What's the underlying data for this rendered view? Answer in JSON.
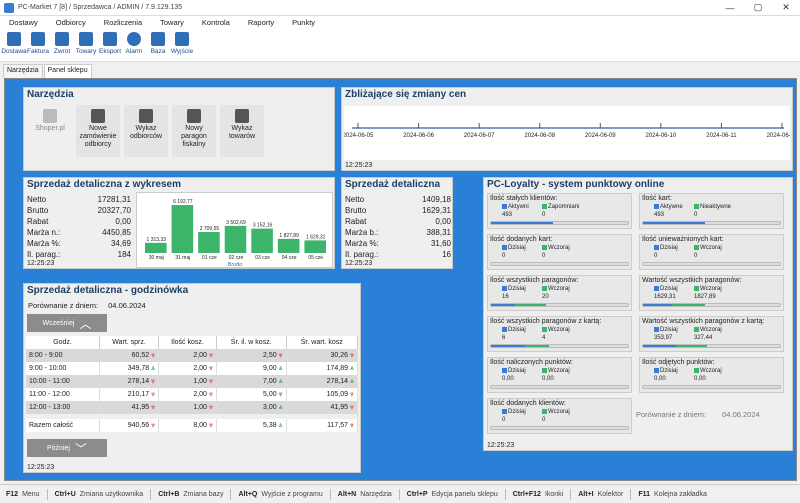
{
  "window": {
    "title": "PC-Market 7 [8] / Sprzedawca / ADMIN / 7.9.129.135",
    "min": "—",
    "max": "▢",
    "close": "✕"
  },
  "menu": [
    "Dostawy",
    "Odbiorcy",
    "Rozliczenia",
    "Towary",
    "Kontrola",
    "Raporty",
    "Punkty"
  ],
  "toolbar": [
    {
      "label": "Dostawa",
      "icon": "truck-icon"
    },
    {
      "label": "Faktura",
      "icon": "invoice-icon"
    },
    {
      "label": "Zwrot",
      "icon": "return-icon"
    },
    {
      "label": "Towary",
      "icon": "goods-icon"
    },
    {
      "label": "Eksport",
      "icon": "export-icon"
    },
    {
      "label": "Alarm",
      "icon": "alarm-icon"
    },
    {
      "label": "Baza",
      "icon": "database-icon"
    },
    {
      "label": "Wyjście",
      "icon": "exit-icon"
    }
  ],
  "tabs": [
    "Narzędzia",
    "Panel sklepu"
  ],
  "narzedzia": {
    "title": "Narzędzia",
    "items": [
      "Shoper.pl",
      "Nowe zamówienie odbiorcy",
      "Wykaz odbiorców",
      "Nowy paragon fiskalny",
      "Wykaz towarów"
    ]
  },
  "zmiany": {
    "title": "Zbliżające się zmiany cen",
    "dates": [
      "2024-06-05",
      "2024-06-06",
      "2024-06-07",
      "2024-06-08",
      "2024-06-09",
      "2024-06-10",
      "2024-06-11",
      "2024-06-12"
    ],
    "time": "12:25:23"
  },
  "wykres": {
    "title": "Sprzedaż detaliczna z wykresem",
    "rows": [
      {
        "k": "Netto",
        "v": "17281,31"
      },
      {
        "k": "Brutto",
        "v": "20327,70"
      },
      {
        "k": "Rabat",
        "v": "0,00"
      },
      {
        "k": "Marża n.:",
        "v": "4450,85"
      },
      {
        "k": "Marża %:",
        "v": "34,69"
      },
      {
        "k": "Il. parag.:",
        "v": "184"
      }
    ],
    "time": "12:25:23"
  },
  "chart_data": {
    "type": "bar",
    "categories": [
      "30 maj",
      "31 maj",
      "01 cze",
      "02 cze",
      "03 cze",
      "04 cze",
      "05 cze"
    ],
    "values": [
      1313.33,
      6192.77,
      2709.55,
      3502.69,
      3152.16,
      1827.89,
      1629.31
    ],
    "labels": [
      "1 313,33",
      "6 192,77",
      "2 709,55",
      "3 502,69",
      "3 152,16",
      "1 827,89",
      "1 629,31"
    ],
    "xlabel": "Brutto",
    "ylim": [
      0,
      6200
    ],
    "color": "#3cb46a"
  },
  "detal": {
    "title": "Sprzedaż detaliczna",
    "rows": [
      {
        "k": "Netto",
        "v": "1409,18"
      },
      {
        "k": "Brutto",
        "v": "1629,31"
      },
      {
        "k": "Rabat",
        "v": "0,00"
      },
      {
        "k": "Marża b.:",
        "v": "388,31"
      },
      {
        "k": "Marża %:",
        "v": "31,60"
      },
      {
        "k": "Il. parag.:",
        "v": "16"
      }
    ],
    "time": "12:25:23"
  },
  "godz": {
    "title": "Sprzedaż detaliczna - godzinówka",
    "compare_label": "Porównanie z dniem:",
    "compare_date": "04.06.2024",
    "earlier": "Wcześniej",
    "later": "Później",
    "headers": [
      "Godz.",
      "Wart. sprz.",
      "Ilość kosz.",
      "Śr. il. w kosz.",
      "Śr. wart. kosz"
    ],
    "rows": [
      {
        "h": "8:00 - 9:00",
        "w": "60,52",
        "wd": "dn",
        "i": "2,00",
        "id": "dn",
        "s": "2,50",
        "sd": "dn",
        "a": "30,26",
        "ad": "dn"
      },
      {
        "h": "9:00 - 10:00",
        "w": "349,78",
        "wd": "up",
        "i": "2,00",
        "id": "dn",
        "s": "9,00",
        "sd": "up",
        "a": "174,89",
        "ad": "up"
      },
      {
        "h": "10:00 - 11:00",
        "w": "278,14",
        "wd": "dn",
        "i": "1,00",
        "id": "dn",
        "s": "7,00",
        "sd": "up",
        "a": "278,14",
        "ad": "up"
      },
      {
        "h": "11:00 - 12:00",
        "w": "210,17",
        "wd": "dn",
        "i": "2,00",
        "id": "dn",
        "s": "5,00",
        "sd": "dn",
        "a": "105,09",
        "ad": "dn"
      },
      {
        "h": "12:00 - 13:00",
        "w": "41,95",
        "wd": "dn",
        "i": "1,00",
        "id": "dn",
        "s": "3,00",
        "sd": "up",
        "a": "41,95",
        "ad": "dn"
      }
    ],
    "total": {
      "h": "Razem całość",
      "w": "940,56",
      "wd": "dn",
      "i": "8,00",
      "id": "dn",
      "s": "5,38",
      "sd": "up",
      "a": "117,57",
      "ad": "dn"
    },
    "time": "12:25:23"
  },
  "loyalty": {
    "title": "PC-Loyalty - system punktowy online",
    "cards": [
      {
        "t": "Ilość stałych klientów:",
        "c1": "Aktywni",
        "c2": "Zapomniani",
        "v1": "493",
        "v2": "0",
        "f1": 0.9,
        "f2": 0
      },
      {
        "t": "Ilość kart:",
        "c1": "Aktywne",
        "c2": "Nieaktywne",
        "v1": "493",
        "v2": "0",
        "f1": 0.9,
        "f2": 0
      },
      {
        "t": "Ilość dodanych kart:",
        "c1": "Dzisiaj",
        "c2": "Wczoraj",
        "v1": "0",
        "v2": "0",
        "f1": 0,
        "f2": 0
      },
      {
        "t": "Ilość unieważnionych kart:",
        "c1": "Dzisiaj",
        "c2": "Wczoraj",
        "v1": "0",
        "v2": "0",
        "f1": 0,
        "f2": 0
      },
      {
        "t": "Ilość wszystkich paragonów:",
        "c1": "Dzisiaj",
        "c2": "Wczoraj",
        "v1": "16",
        "v2": "20",
        "f1": 0.35,
        "f2": 0.45
      },
      {
        "t": "Wartość wszystkich paragonów:",
        "c1": "Dzisiaj",
        "c2": "Wczoraj",
        "v1": "1629,31",
        "v2": "1827,89",
        "f1": 0.42,
        "f2": 0.48
      },
      {
        "t": "Ilość wszystkich paragonów z kartą:",
        "c1": "Dzisiaj",
        "c2": "Wczoraj",
        "v1": "6",
        "v2": "4",
        "f1": 0.5,
        "f2": 0.35
      },
      {
        "t": "Wartość wszystkich paragonów z kartą:",
        "c1": "Dzisiaj",
        "c2": "Wczoraj",
        "v1": "353,97",
        "v2": "327,44",
        "f1": 0.48,
        "f2": 0.45
      },
      {
        "t": "Ilość naliczonych punktów:",
        "c1": "Dzisiaj",
        "c2": "Wczoraj",
        "v1": "0,00",
        "v2": "0,00",
        "f1": 0,
        "f2": 0
      },
      {
        "t": "Ilość odjętych punktów:",
        "c1": "Dzisiaj",
        "c2": "Wczoraj",
        "v1": "0,00",
        "v2": "0,00",
        "f1": 0,
        "f2": 0
      },
      {
        "t": "Ilość dodanych klientów:",
        "c1": "Dzisiaj",
        "c2": "Wczoraj",
        "v1": "0",
        "v2": "0",
        "f1": 0,
        "f2": 0
      }
    ],
    "compare_label": "Porównanie z dniem:",
    "compare_date": "04.06.2024",
    "time": "12:25:23"
  },
  "status": [
    {
      "k": "F12",
      "t": "Menu"
    },
    {
      "k": "Ctrl+U",
      "t": "Zmiana użytkownika"
    },
    {
      "k": "Ctrl+B",
      "t": "Zmiana bazy"
    },
    {
      "k": "Alt+Q",
      "t": "Wyjście z programu"
    },
    {
      "k": "Alt+N",
      "t": "Narzędzia"
    },
    {
      "k": "Ctrl+P",
      "t": "Edycja panelu sklepu"
    },
    {
      "k": "Ctrl+F12",
      "t": "Ikonki"
    },
    {
      "k": "Alt+I",
      "t": "Kolektor"
    },
    {
      "k": "F11",
      "t": "Kolejna zakładka"
    }
  ]
}
